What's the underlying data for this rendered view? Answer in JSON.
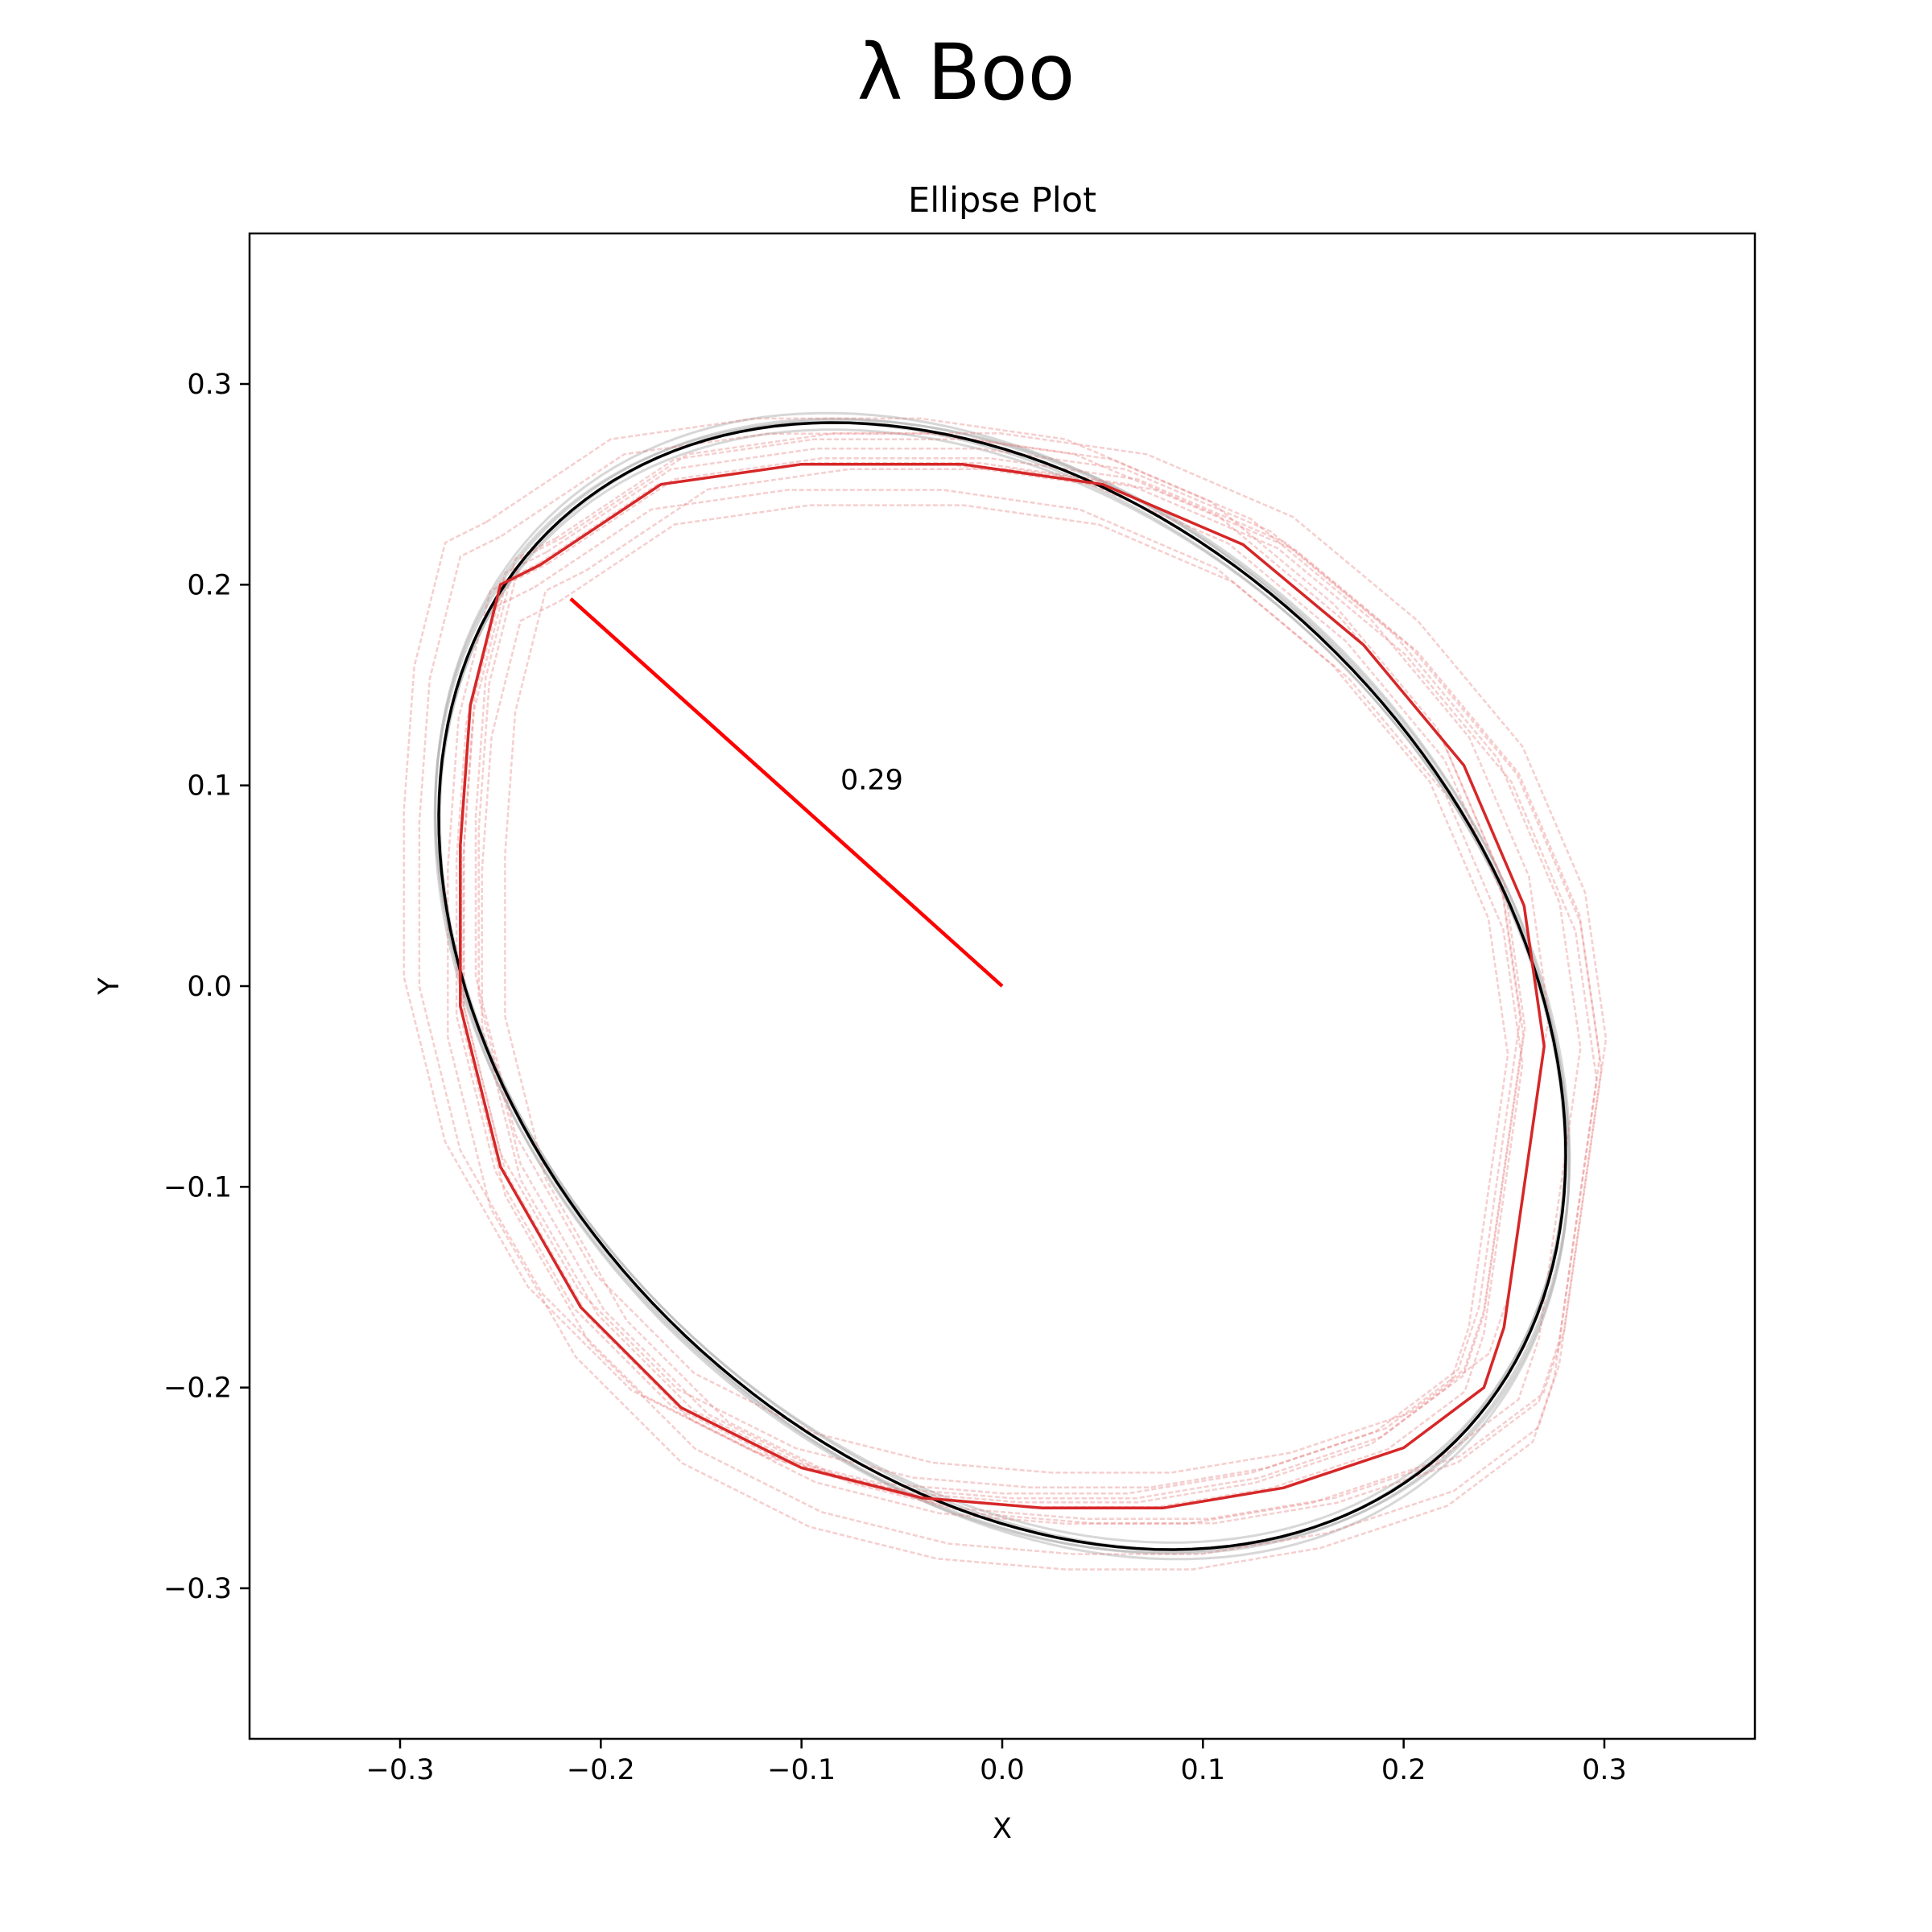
{
  "figure": {
    "suptitle": "λ Boo"
  },
  "chart_data": {
    "type": "line",
    "title": "Ellipse Plot",
    "xlabel": "X",
    "ylabel": "Y",
    "xlim": [
      -0.375,
      0.375
    ],
    "ylim": [
      -0.375,
      0.375
    ],
    "xticks": [
      -0.3,
      -0.2,
      -0.1,
      0.0,
      0.1,
      0.2,
      0.3
    ],
    "xtick_labels": [
      "−0.3",
      "−0.2",
      "−0.1",
      "0.0",
      "0.1",
      "0.2",
      "0.3"
    ],
    "yticks": [
      -0.3,
      -0.2,
      -0.1,
      0.0,
      0.1,
      0.2,
      0.3
    ],
    "ytick_labels": [
      "−0.3",
      "−0.2",
      "−0.1",
      "0.0",
      "0.1",
      "0.2",
      "0.3"
    ],
    "grid": false,
    "colors": {
      "reference": "#000000",
      "reference_samples": "#b0b0b0",
      "measured": "#d62728",
      "measured_samples": "#e57373",
      "radius_line": "#ff0000"
    },
    "reference_ellipse": {
      "center": [
        0.0,
        0.0
      ],
      "semi_major": 0.32,
      "semi_minor": 0.235,
      "rotation_deg": -45
    },
    "reference_samples": [
      {
        "semi_major": 0.322,
        "semi_minor": 0.237,
        "rotation_deg": -45
      },
      {
        "semi_major": 0.318,
        "semi_minor": 0.233,
        "rotation_deg": -44
      },
      {
        "semi_major": 0.325,
        "semi_minor": 0.236,
        "rotation_deg": -46
      },
      {
        "semi_major": 0.319,
        "semi_minor": 0.238,
        "rotation_deg": -45.5
      },
      {
        "semi_major": 0.323,
        "semi_minor": 0.233,
        "rotation_deg": -44.5
      }
    ],
    "measured_curve": [
      [
        -0.23,
        0.21
      ],
      [
        -0.17,
        0.25
      ],
      [
        -0.1,
        0.26
      ],
      [
        -0.02,
        0.26
      ],
      [
        0.05,
        0.25
      ],
      [
        0.12,
        0.22
      ],
      [
        0.18,
        0.17
      ],
      [
        0.23,
        0.11
      ],
      [
        0.26,
        0.04
      ],
      [
        0.27,
        -0.03
      ],
      [
        0.26,
        -0.1
      ],
      [
        0.25,
        -0.17
      ],
      [
        0.24,
        -0.2
      ],
      [
        0.2,
        -0.23
      ],
      [
        0.14,
        -0.25
      ],
      [
        0.08,
        -0.26
      ],
      [
        0.02,
        -0.26
      ],
      [
        -0.04,
        -0.255
      ],
      [
        -0.1,
        -0.24
      ],
      [
        -0.16,
        -0.21
      ],
      [
        -0.21,
        -0.16
      ],
      [
        -0.25,
        -0.09
      ],
      [
        -0.27,
        -0.01
      ],
      [
        -0.27,
        0.07
      ],
      [
        -0.265,
        0.14
      ],
      [
        -0.25,
        0.2
      ],
      [
        -0.23,
        0.21
      ]
    ],
    "measured_samples": [
      {
        "scale": 1.0,
        "dx": 0.0,
        "dy": 0.0
      },
      {
        "scale": 1.03,
        "dx": 0.01,
        "dy": 0.0
      },
      {
        "scale": 0.98,
        "dx": -0.005,
        "dy": 0.005
      },
      {
        "scale": 1.05,
        "dx": 0.015,
        "dy": -0.01
      },
      {
        "scale": 0.96,
        "dx": 0.0,
        "dy": -0.01
      },
      {
        "scale": 1.02,
        "dx": -0.015,
        "dy": 0.01
      },
      {
        "scale": 1.04,
        "dx": 0.02,
        "dy": 0.005
      },
      {
        "scale": 0.99,
        "dx": 0.005,
        "dy": 0.015
      },
      {
        "scale": 1.06,
        "dx": 0.01,
        "dy": -0.015
      },
      {
        "scale": 0.97,
        "dx": -0.01,
        "dy": -0.005
      },
      {
        "scale": 1.01,
        "dx": 0.025,
        "dy": -0.005
      },
      {
        "scale": 1.03,
        "dx": -0.02,
        "dy": 0.015
      }
    ],
    "radius_line": {
      "from": [
        0.0,
        0.0
      ],
      "to": [
        -0.215,
        0.193
      ]
    },
    "annotations": [
      {
        "text": "0.29",
        "x": -0.065,
        "y": 0.098
      }
    ]
  }
}
